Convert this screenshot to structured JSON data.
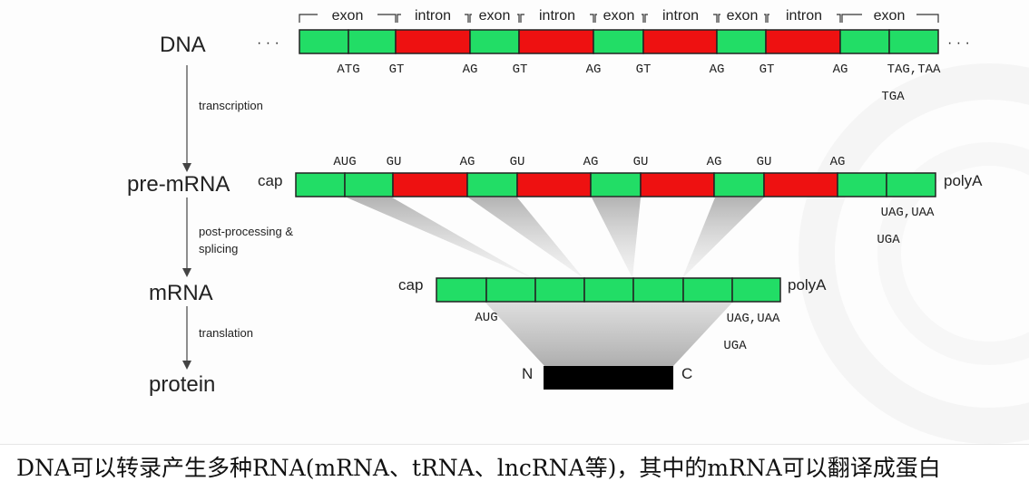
{
  "stages": {
    "dna": "DNA",
    "pre_mrna": "pre-mRNA",
    "mrna": "mRNA",
    "protein": "protein"
  },
  "steps": {
    "transcription": "transcription",
    "post_processing_1": "post-processing &",
    "post_processing_2": "splicing",
    "translation": "translation"
  },
  "dna_regions": [
    "exon",
    "intron",
    "exon",
    "intron",
    "exon",
    "intron",
    "exon",
    "intron",
    "exon"
  ],
  "ellipsis": "· · ·",
  "dna_sites": [
    "ATG",
    "GT",
    "AG",
    "GT",
    "AG",
    "GT",
    "AG",
    "GT",
    "AG"
  ],
  "dna_stop_1": "TAG,TAA",
  "dna_stop_2": "TGA",
  "pre_sites": [
    "AUG",
    "GU",
    "AG",
    "GU",
    "AG",
    "GU",
    "AG",
    "GU",
    "AG"
  ],
  "pre_stop_1": "UAG,UAA",
  "pre_stop_2": "UGA",
  "cap": "cap",
  "polyA": "polyA",
  "mrna_start": "AUG",
  "mrna_stop_1": "UAG,UAA",
  "mrna_stop_2": "UGA",
  "protein_n": "N",
  "protein_c": "C",
  "colors": {
    "exon": "#22dd66",
    "intron": "#ee1111",
    "protein": "#000000"
  },
  "caption": "DNA可以转录产生多种RNA(mRNA、tRNA、lncRNA等)，其中的mRNA可以翻译成蛋白"
}
